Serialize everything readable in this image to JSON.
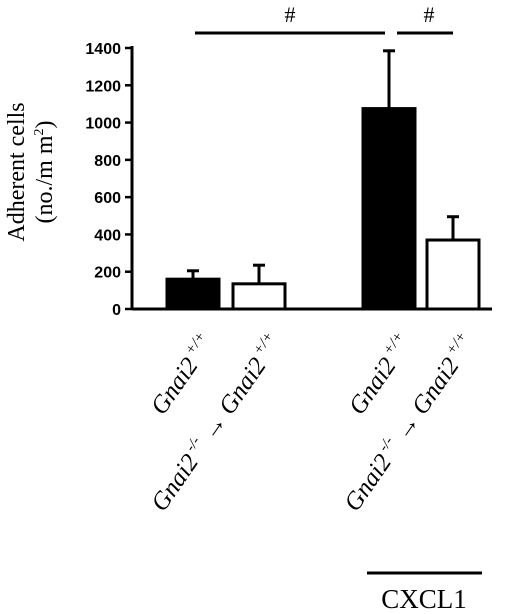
{
  "chart_data": {
    "type": "bar",
    "ylabel_line1": "Adherent cells",
    "ylabel_line2": "(no./m m",
    "ylabel_sup": "2",
    "ylabel_close": ")",
    "ylim": [
      0,
      1400
    ],
    "yticks": [
      0,
      200,
      400,
      600,
      800,
      1000,
      1200,
      1400
    ],
    "categories": [
      {
        "name": "Gnai2",
        "sup": "+/+",
        "donor": "",
        "donor_sup": "",
        "value": 160,
        "error": 45,
        "fill": "#000000"
      },
      {
        "name": "Gnai2",
        "sup": "+/+",
        "donor": "Gnai2",
        "donor_sup": "-/-",
        "value": 135,
        "error": 100,
        "fill": "#ffffff"
      },
      {
        "name": "Gnai2",
        "sup": "+/+",
        "donor": "",
        "donor_sup": "",
        "value": 1075,
        "error": 310,
        "fill": "#000000"
      },
      {
        "name": "Gnai2",
        "sup": "+/+",
        "donor": "Gnai2",
        "donor_sup": "-/-",
        "value": 370,
        "error": 125,
        "fill": "#ffffff"
      }
    ],
    "significance": [
      {
        "from": 0,
        "to": 2,
        "label": "#"
      },
      {
        "from": 2,
        "to": 3,
        "label": "#"
      }
    ],
    "group_label": "CXCL1",
    "grid": false
  }
}
